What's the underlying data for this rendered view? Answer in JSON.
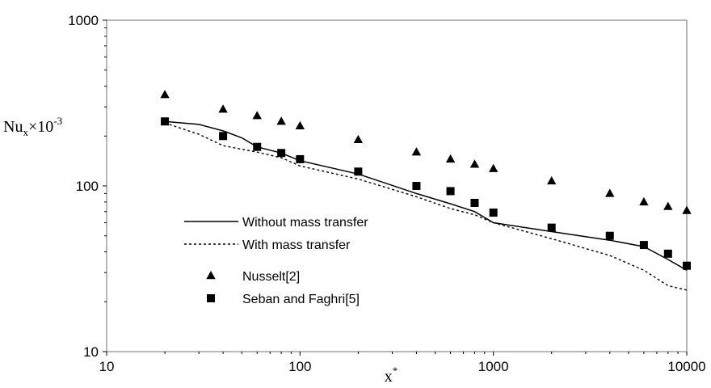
{
  "chart_data": {
    "type": "line",
    "x_scale": "log",
    "y_scale": "log",
    "xlim": [
      10,
      10000
    ],
    "ylim": [
      10,
      1000
    ],
    "x_ticks": [
      "10",
      "100",
      "1000",
      "10000"
    ],
    "y_ticks": [
      "10",
      "100",
      "1000"
    ],
    "xlabel": {
      "base": "x",
      "sup": "*"
    },
    "ylabel": {
      "base": "Nu",
      "sub": "x",
      "mid": "×10",
      "sup": "-3"
    },
    "grid": false,
    "legend_position": "lower-left inside plot",
    "series": [
      {
        "name": "Without mass transfer",
        "style": "solid-line",
        "x": [
          20,
          30,
          40,
          50,
          60,
          80,
          100,
          200,
          400,
          600,
          800,
          1000,
          2000,
          4000,
          6000,
          8000,
          10000
        ],
        "y": [
          245,
          235,
          215,
          195,
          172,
          158,
          142,
          118,
          90,
          78,
          70,
          60,
          53,
          47,
          43,
          36,
          31
        ]
      },
      {
        "name": "With mass transfer",
        "style": "dashed-line",
        "x": [
          20,
          30,
          40,
          60,
          80,
          100,
          200,
          400,
          600,
          800,
          1000,
          2000,
          4000,
          6000,
          8000,
          10000
        ],
        "y": [
          240,
          205,
          175,
          160,
          148,
          132,
          110,
          86,
          73,
          67,
          60,
          48,
          38,
          31,
          25,
          23.5
        ]
      },
      {
        "name": "Nusselt[2]",
        "style": "triangle-marker",
        "x": [
          20,
          40,
          60,
          80,
          100,
          200,
          400,
          600,
          800,
          1000,
          2000,
          4000,
          6000,
          8000,
          10000
        ],
        "y": [
          355,
          290,
          265,
          245,
          230,
          190,
          160,
          145,
          135,
          127,
          107,
          90,
          80,
          75,
          71
        ]
      },
      {
        "name": "Seban and Faghri[5]",
        "style": "square-marker",
        "x": [
          20,
          40,
          60,
          80,
          100,
          200,
          400,
          600,
          800,
          1000,
          2000,
          4000,
          6000,
          8000,
          10000
        ],
        "y": [
          245,
          200,
          172,
          158,
          145,
          122,
          100,
          93,
          79,
          69,
          56,
          50,
          44,
          39,
          33
        ]
      }
    ]
  }
}
